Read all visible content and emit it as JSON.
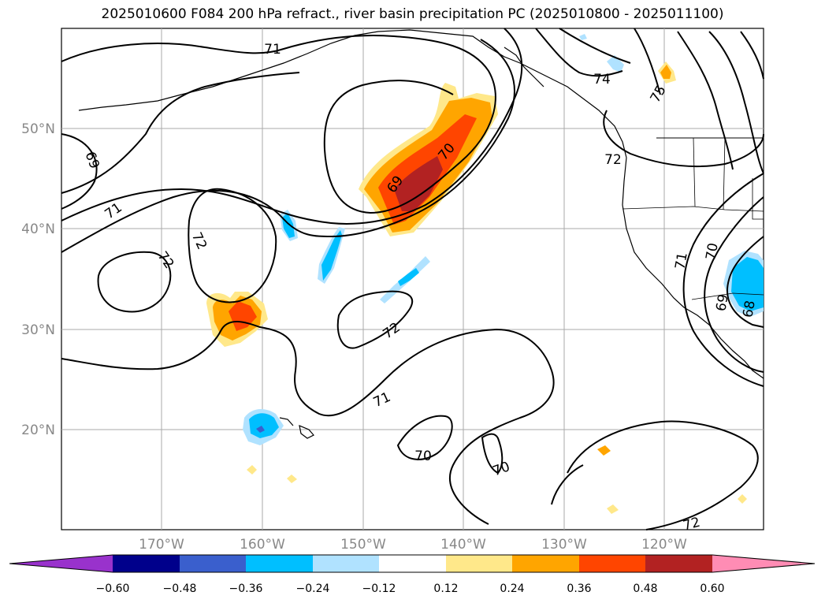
{
  "title": "2025010600 F084 200 hPa refract., river basin precipitation PC (2025010800 - 2025011100)",
  "map": {
    "lat_ticks": [
      "50°N",
      "40°N",
      "30°N",
      "20°N"
    ],
    "lon_ticks": [
      "170°W",
      "160°W",
      "150°W",
      "140°W",
      "130°W",
      "120°W"
    ],
    "contour_labels": [
      "71",
      "74",
      "75",
      "69",
      "71",
      "72",
      "72",
      "69",
      "70",
      "72",
      "72",
      "71",
      "70",
      "70",
      "71",
      "70",
      "69",
      "68",
      "72"
    ]
  },
  "colorbar": {
    "labels": [
      "−0.60",
      "−0.48",
      "−0.36",
      "−0.24",
      "−0.12",
      "0.12",
      "0.24",
      "0.36",
      "0.48",
      "0.60"
    ],
    "colors": [
      "#9932cc",
      "#00008b",
      "#3a5fcd",
      "#00bfff",
      "#b0e2ff",
      "#ffffff",
      "#ffe88a",
      "#ffa500",
      "#ff4500",
      "#b22222",
      "#ff8cb4"
    ]
  }
}
